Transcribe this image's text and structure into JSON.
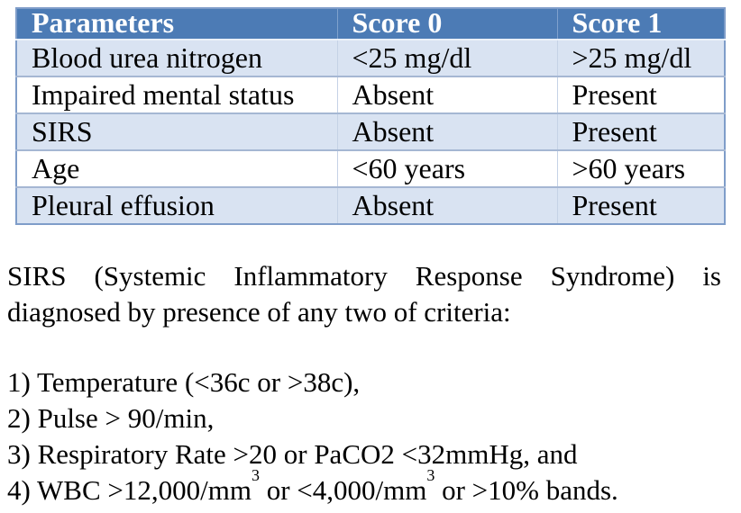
{
  "colors": {
    "header_bg": "#4C7BB5",
    "header_text": "#FFFFFF",
    "band_row_bg": "#D9E3F2",
    "plain_row_bg": "#FFFFFF",
    "table_border": "#7F9DC9",
    "row_divider": "#A5B7D3"
  },
  "table": {
    "headers": [
      "Parameters",
      "Score 0",
      "Score 1"
    ],
    "rows": [
      [
        "Blood urea nitrogen",
        "<25 mg/dl",
        ">25 mg/dl"
      ],
      [
        "Impaired mental status",
        "Absent",
        "Present"
      ],
      [
        "SIRS",
        "Absent",
        "Present"
      ],
      [
        "Age",
        "<60 years",
        ">60 years"
      ],
      [
        "Pleural effusion",
        "Absent",
        "Present"
      ]
    ]
  },
  "note": {
    "definition": "SIRS (Systemic Inflammatory Response Syndrome) is diagnosed by presence of any two of criteria:",
    "criteria": [
      "1) Temperature (<36c or >38c),",
      "2) Pulse > 90/min,",
      "3) Respiratory Rate >20 or PaCO2 <32mmHg, and"
    ],
    "criterion4": {
      "a": "4) WBC >12,000/mm",
      "sup_a": "3",
      "b": " or <4,000/mm",
      "sup_b": "3",
      "c": " or >10% bands."
    }
  }
}
